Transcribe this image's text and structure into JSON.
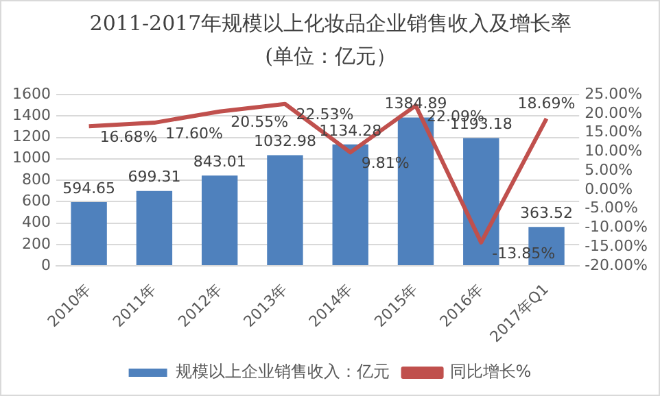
{
  "chart_data": {
    "type": "bar",
    "title": "2011-2017年规模以上化妆品企业销售收入及增长率(单位：亿元）",
    "categories": [
      "2010年",
      "2011年",
      "2012年",
      "2013年",
      "2014年",
      "2015年",
      "2016年",
      "2017年Q1"
    ],
    "series": [
      {
        "name": "规模以上企业销售收入：亿元",
        "color": "#4f81bd",
        "values": [
          594.65,
          699.31,
          843.01,
          1032.98,
          1134.28,
          1384.89,
          1193.18,
          363.52
        ],
        "value_labels": [
          "594.65",
          "699.31",
          "843.01",
          "1032.98",
          "1134.28",
          "1384.89",
          "1193.18",
          "363.52"
        ]
      },
      {
        "name": "同比增长%",
        "type": "line",
        "axis": "y2",
        "color": "#c0504d",
        "values": [
          16.68,
          17.6,
          20.55,
          22.53,
          9.81,
          22.09,
          -13.85,
          18.69
        ],
        "value_labels": [
          "16.68%",
          "17.60%",
          "20.55%",
          "22.53%",
          "9.81%",
          "22.09%",
          "-13.85%",
          "18.69%"
        ]
      }
    ],
    "ylim": [
      0,
      1600
    ],
    "yticks": [
      0,
      200,
      400,
      600,
      800,
      1000,
      1200,
      1400,
      1600
    ],
    "y2lim": [
      -20,
      25
    ],
    "y2ticks": [
      {
        "value": -20,
        "label": "-20.00%"
      },
      {
        "value": -15,
        "label": "-15.00%"
      },
      {
        "value": -10,
        "label": "-10.00%"
      },
      {
        "value": -5,
        "label": "-5.00%"
      },
      {
        "value": 0,
        "label": "0.00%"
      },
      {
        "value": 5,
        "label": "5.00%"
      },
      {
        "value": 10,
        "label": "10.00%"
      },
      {
        "value": 15,
        "label": "15.00%"
      },
      {
        "value": 20,
        "label": "20.00%"
      },
      {
        "value": 25,
        "label": "25.00%"
      }
    ],
    "grid": "y",
    "legend": "bottom",
    "marker": "none"
  }
}
